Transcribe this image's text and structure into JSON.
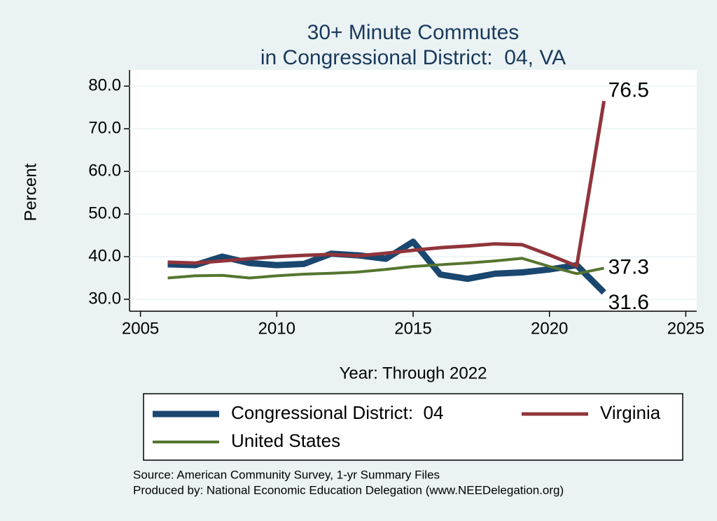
{
  "chart_data": {
    "type": "line",
    "title": [
      "30+ Minute Commutes",
      "in Congressional District:  04, VA"
    ],
    "x": [
      2006,
      2007,
      2008,
      2009,
      2010,
      2011,
      2012,
      2013,
      2014,
      2015,
      2016,
      2017,
      2018,
      2019,
      2020,
      2021,
      2022
    ],
    "series": [
      {
        "name": "Congressional District:  04",
        "color": "#1a476f",
        "values": [
          38.2,
          38.0,
          40.0,
          38.5,
          38.0,
          38.3,
          40.7,
          40.3,
          39.5,
          43.5,
          35.8,
          34.8,
          36.0,
          36.3,
          37.0,
          38.0,
          31.6
        ]
      },
      {
        "name": "Virginia",
        "color": "#90353b",
        "values": [
          38.7,
          38.5,
          39.0,
          39.5,
          40.0,
          40.3,
          40.5,
          40.2,
          40.8,
          41.5,
          42.1,
          42.5,
          43.0,
          42.8,
          40.4,
          37.8,
          76.5
        ]
      },
      {
        "name": "United States",
        "color": "#55752f",
        "values": [
          35.0,
          35.5,
          35.6,
          35.0,
          35.5,
          35.9,
          36.1,
          36.4,
          37.0,
          37.7,
          38.1,
          38.5,
          39.0,
          39.6,
          37.7,
          36.0,
          37.3
        ]
      }
    ],
    "xlabel": "Year: Through 2022",
    "ylabel": "Percent",
    "xlim": [
      2004.6,
      2025.4
    ],
    "ylim": [
      27.2,
      83.8
    ],
    "xticks": [
      2005,
      2010,
      2015,
      2020,
      2025
    ],
    "yticks": [
      {
        "value": 30,
        "label": "30.0"
      },
      {
        "value": 40,
        "label": "40.0"
      },
      {
        "value": 50,
        "label": "50.0"
      },
      {
        "value": 60,
        "label": "60.0"
      },
      {
        "value": 70,
        "label": "70.0"
      },
      {
        "value": 80,
        "label": "80.0"
      }
    ],
    "grid": true,
    "legend": "bottom",
    "notes": [
      "Source: American Community Survey, 1-yr Summary Files",
      "Produced by: National Economic Education Delegation (www.NEEDelegation.org)"
    ]
  }
}
